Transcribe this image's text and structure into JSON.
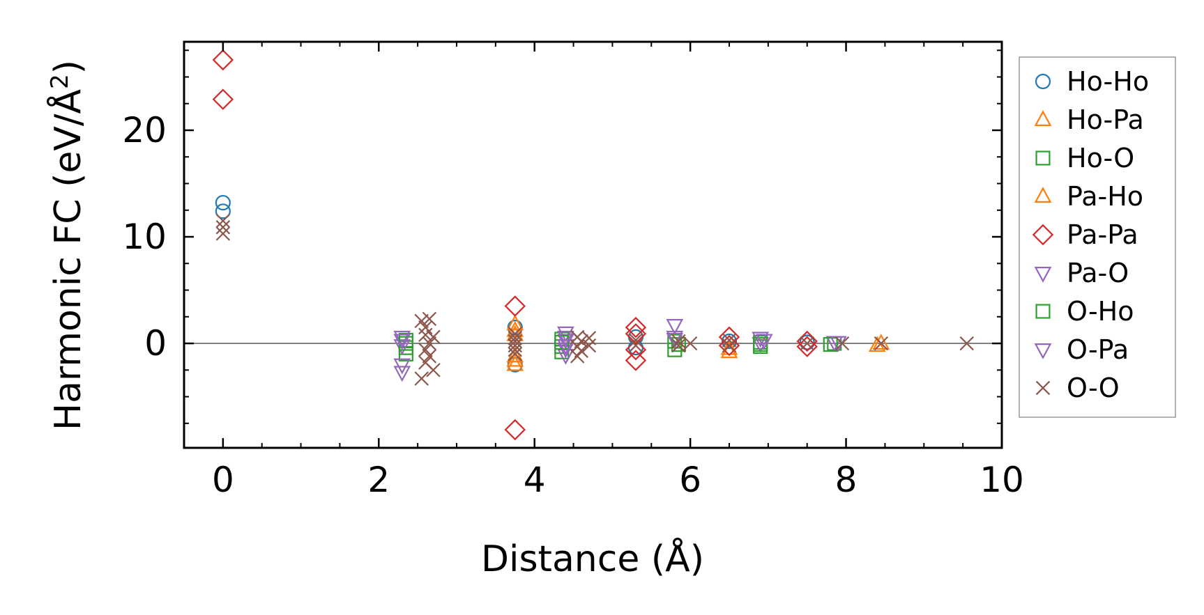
{
  "chart_data": {
    "type": "scatter",
    "title": "",
    "xlabel": "Distance (Å)",
    "ylabel_main": "Harmonic FC (eV/Å",
    "ylabel_sup": "2",
    "ylabel_close": ")",
    "xlim": [
      -0.5,
      10.0
    ],
    "ylim": [
      -9.8,
      28.3
    ],
    "xticks": [
      0,
      2,
      4,
      6,
      8,
      10
    ],
    "xtick_labels": [
      "0",
      "2",
      "4",
      "6",
      "8",
      "10"
    ],
    "yticks": [
      0,
      10,
      20
    ],
    "ytick_labels": [
      "0",
      "10",
      "20"
    ],
    "zero_line": 0,
    "grid": false,
    "legend_position": "right-outside",
    "series": [
      {
        "name": "Ho-Ho",
        "marker": "circle",
        "color": "#1f77b4",
        "points": [
          [
            0,
            13.2
          ],
          [
            0,
            12.4
          ],
          [
            3.75,
            1.5
          ],
          [
            3.75,
            -2.0
          ],
          [
            5.3,
            0.6
          ],
          [
            5.3,
            -0.4
          ],
          [
            6.5,
            0.2
          ],
          [
            7.5,
            0.1
          ]
        ]
      },
      {
        "name": "Ho-Pa",
        "marker": "triangle-up",
        "color": "#ff7f0e",
        "points": [
          [
            3.75,
            1.8
          ],
          [
            3.75,
            0.8
          ],
          [
            3.75,
            -1.6
          ],
          [
            3.75,
            -2.0
          ],
          [
            6.5,
            -0.8
          ],
          [
            8.4,
            -0.2
          ]
        ]
      },
      {
        "name": "Ho-O",
        "marker": "square",
        "color": "#2ca02c",
        "points": [
          [
            2.35,
            0.3
          ],
          [
            2.35,
            -0.4
          ],
          [
            2.35,
            -1.0
          ],
          [
            4.35,
            0.4
          ],
          [
            4.35,
            -0.3
          ],
          [
            4.35,
            -0.8
          ],
          [
            5.8,
            0.2
          ],
          [
            5.8,
            -0.6
          ],
          [
            6.9,
            0.1
          ],
          [
            6.9,
            -0.3
          ],
          [
            7.85,
            0.0
          ]
        ]
      },
      {
        "name": "Pa-Ho",
        "marker": "triangle-up",
        "color": "#ff7f0e",
        "points": [
          [
            3.75,
            1.2
          ],
          [
            3.75,
            -1.2
          ],
          [
            6.5,
            -0.5
          ],
          [
            8.45,
            0.0
          ]
        ]
      },
      {
        "name": "Pa-Pa",
        "marker": "diamond",
        "color": "#d62728",
        "points": [
          [
            0,
            26.6
          ],
          [
            0,
            22.9
          ],
          [
            3.75,
            3.5
          ],
          [
            3.75,
            -8.1
          ],
          [
            5.3,
            1.5
          ],
          [
            5.3,
            0.9
          ],
          [
            5.3,
            -0.6
          ],
          [
            5.3,
            -1.6
          ],
          [
            6.5,
            0.6
          ],
          [
            6.5,
            -0.2
          ],
          [
            7.5,
            0.2
          ],
          [
            7.5,
            -0.3
          ]
        ]
      },
      {
        "name": "Pa-O",
        "marker": "triangle-down",
        "color": "#9467bd",
        "points": [
          [
            2.3,
            0.6
          ],
          [
            2.3,
            -0.2
          ],
          [
            2.3,
            -2.0
          ],
          [
            2.3,
            -2.7
          ],
          [
            4.4,
            1.0
          ],
          [
            4.4,
            0.3
          ],
          [
            4.4,
            -0.5
          ],
          [
            4.4,
            -1.1
          ],
          [
            5.8,
            1.7
          ],
          [
            5.8,
            0.4
          ],
          [
            6.9,
            0.5
          ],
          [
            6.9,
            0.0
          ],
          [
            7.85,
            0.1
          ]
        ]
      },
      {
        "name": "O-Ho",
        "marker": "square",
        "color": "#2ca02c",
        "points": [
          [
            2.35,
            0.0
          ],
          [
            4.35,
            0.1
          ],
          [
            5.85,
            -0.1
          ],
          [
            6.9,
            -0.1
          ],
          [
            7.8,
            -0.1
          ]
        ]
      },
      {
        "name": "O-Pa",
        "marker": "triangle-down",
        "color": "#9467bd",
        "points": [
          [
            2.3,
            0.3
          ],
          [
            4.4,
            0.6
          ],
          [
            4.4,
            -0.2
          ],
          [
            5.8,
            0.6
          ],
          [
            6.95,
            0.3
          ],
          [
            7.9,
            0.1
          ]
        ]
      },
      {
        "name": "O-O",
        "marker": "x",
        "color": "#8c564b",
        "points": [
          [
            0,
            11.5
          ],
          [
            0,
            10.9
          ],
          [
            0,
            10.3
          ],
          [
            2.55,
            2.1
          ],
          [
            2.6,
            1.5
          ],
          [
            2.65,
            2.3
          ],
          [
            2.6,
            0.8
          ],
          [
            2.7,
            0.6
          ],
          [
            2.65,
            0.0
          ],
          [
            2.6,
            -0.6
          ],
          [
            2.65,
            -1.2
          ],
          [
            2.6,
            -1.8
          ],
          [
            2.7,
            -2.5
          ],
          [
            2.55,
            -3.3
          ],
          [
            3.75,
            0.9
          ],
          [
            3.75,
            0.5
          ],
          [
            3.75,
            0.2
          ],
          [
            3.75,
            -0.2
          ],
          [
            3.75,
            -0.6
          ],
          [
            3.75,
            -1.0
          ],
          [
            4.55,
            0.6
          ],
          [
            4.6,
            0.2
          ],
          [
            4.55,
            -0.3
          ],
          [
            4.6,
            -0.7
          ],
          [
            4.55,
            -1.2
          ],
          [
            4.7,
            0.5
          ],
          [
            4.7,
            -0.2
          ],
          [
            5.3,
            0.3
          ],
          [
            5.3,
            -0.2
          ],
          [
            5.85,
            0.2
          ],
          [
            5.85,
            -0.2
          ],
          [
            6.0,
            0.0
          ],
          [
            6.5,
            0.3
          ],
          [
            6.5,
            -0.2
          ],
          [
            7.5,
            0.0
          ],
          [
            7.95,
            0.0
          ],
          [
            8.45,
            0.0
          ],
          [
            9.55,
            0.0
          ]
        ]
      }
    ]
  }
}
